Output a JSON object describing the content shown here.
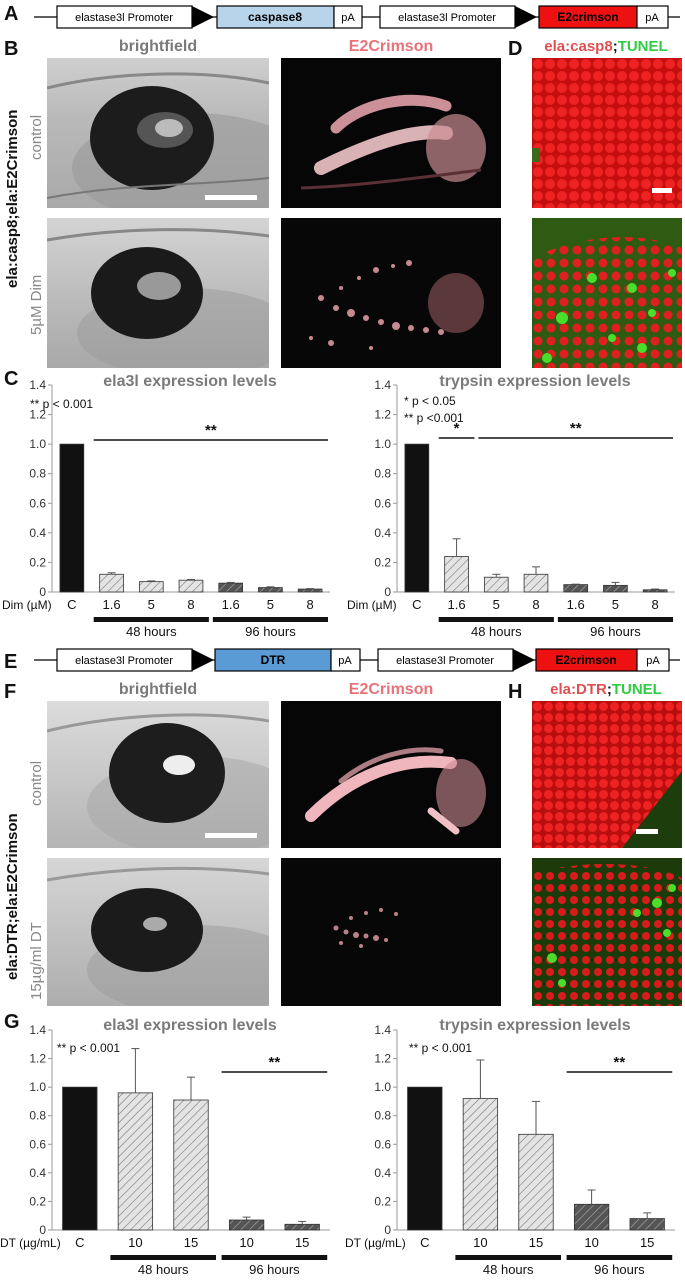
{
  "panels": {
    "A": "A",
    "B": "B",
    "C": "C",
    "D": "D",
    "E": "E",
    "F": "F",
    "G": "G",
    "H": "H"
  },
  "construct_top": {
    "promoter1": "elastase3l Promoter",
    "gene": "caspase8",
    "pa1": "pA",
    "promoter2": "elastase3l Promoter",
    "reporter": "E2crimson",
    "pa2": "pA"
  },
  "construct_bottom": {
    "promoter1": "elastase3l Promoter",
    "gene": "DTR",
    "pa1": "pA",
    "promoter2": "elastase3l Promoter",
    "reporter": "E2crimson",
    "pa2": "pA"
  },
  "section_top": {
    "brightfield": "brightfield",
    "e2crimson": "E2Crimson",
    "tunel_label_red": "ela:casp8",
    "tunel_label_sep": ";",
    "tunel_label_green": "TUNEL",
    "genotype": "ela:casp8;ela:E2Crimson",
    "row1": "control",
    "row2": "5µM Dim"
  },
  "section_bottom": {
    "brightfield": "brightfield",
    "e2crimson": "E2Crimson",
    "tunel_label_red": "ela:DTR",
    "tunel_label_sep": ";",
    "tunel_label_green": "TUNEL",
    "genotype": "ela:DTR;ela:E2Crimson",
    "row1": "control",
    "row2": "15µg/ml DT"
  },
  "colors": {
    "crimson_text": "#e8727a",
    "tunel_green": "#2ecc40",
    "caspase_box": "#b8d4ea",
    "dtr_box": "#5b9bd5",
    "e2crimson_box": "#ee1111"
  },
  "chart_data": [
    {
      "type": "bar",
      "title": "ela3l expression levels",
      "annotations": [
        "** p < 0.001"
      ],
      "xlabel": "Dim (µM)",
      "categories": [
        "C",
        "1.6",
        "5",
        "8",
        "1.6",
        "5",
        "8"
      ],
      "values": [
        1.0,
        0.12,
        0.07,
        0.08,
        0.06,
        0.03,
        0.02
      ],
      "errors": [
        0,
        0.01,
        0.005,
        0.005,
        0.005,
        0.005,
        0.003
      ],
      "groups": [
        {
          "label": "48 hours",
          "from": 1,
          "to": 3
        },
        {
          "label": "96 hours",
          "from": 4,
          "to": 6
        }
      ],
      "significance": [
        {
          "text": "**",
          "from": 1,
          "to": 6
        }
      ],
      "ylim": [
        0,
        1.4
      ],
      "yticks": [
        "0",
        "0.2",
        "0.4",
        "0.6",
        "0.8",
        "1.0",
        "1.2",
        "1.4"
      ]
    },
    {
      "type": "bar",
      "title": "trypsin expression levels",
      "annotations": [
        "* p < 0.05",
        "** p <0.001"
      ],
      "xlabel": "Dim (µM)",
      "categories": [
        "C",
        "1.6",
        "5",
        "8",
        "1.6",
        "5",
        "8"
      ],
      "values": [
        1.0,
        0.24,
        0.1,
        0.12,
        0.05,
        0.045,
        0.015
      ],
      "errors": [
        0,
        0.12,
        0.02,
        0.05,
        0.003,
        0.02,
        0.005
      ],
      "groups": [
        {
          "label": "48 hours",
          "from": 1,
          "to": 3
        },
        {
          "label": "96 hours",
          "from": 4,
          "to": 6
        }
      ],
      "significance": [
        {
          "text": "*",
          "from": 1,
          "to": 1
        },
        {
          "text": "**",
          "from": 2,
          "to": 6
        }
      ],
      "ylim": [
        0,
        1.4
      ],
      "yticks": [
        "0",
        "0.2",
        "0.4",
        "0.6",
        "0.8",
        "1.0",
        "1.2",
        "1.4"
      ]
    },
    {
      "type": "bar",
      "title": "ela3l expression levels",
      "annotations": [
        "** p < 0.001"
      ],
      "xlabel": "DT (µg/mL)",
      "categories": [
        "C",
        "10",
        "15",
        "10",
        "15"
      ],
      "values": [
        1.0,
        0.96,
        0.91,
        0.07,
        0.04
      ],
      "errors": [
        0,
        0.31,
        0.16,
        0.02,
        0.02
      ],
      "groups": [
        {
          "label": "48 hours",
          "from": 1,
          "to": 2
        },
        {
          "label": "96 hours",
          "from": 3,
          "to": 4
        }
      ],
      "significance": [
        {
          "text": "**",
          "from": 3,
          "to": 4
        }
      ],
      "ylim": [
        0,
        1.4
      ],
      "yticks": [
        "0",
        "0.2",
        "0.4",
        "0.6",
        "0.8",
        "1.0",
        "1.2",
        "1.4"
      ]
    },
    {
      "type": "bar",
      "title": "trypsin expression levels",
      "annotations": [
        "** p < 0.001"
      ],
      "xlabel": "DT (µg/mL)",
      "categories": [
        "C",
        "10",
        "15",
        "10",
        "15"
      ],
      "values": [
        1.0,
        0.92,
        0.67,
        0.18,
        0.08
      ],
      "errors": [
        0,
        0.27,
        0.23,
        0.1,
        0.04
      ],
      "groups": [
        {
          "label": "48 hours",
          "from": 1,
          "to": 2
        },
        {
          "label": "96 hours",
          "from": 3,
          "to": 4
        }
      ],
      "significance": [
        {
          "text": "**",
          "from": 3,
          "to": 4
        }
      ],
      "ylim": [
        0,
        1.4
      ],
      "yticks": [
        "0",
        "0.2",
        "0.4",
        "0.6",
        "0.8",
        "1.0",
        "1.2",
        "1.4"
      ]
    }
  ]
}
